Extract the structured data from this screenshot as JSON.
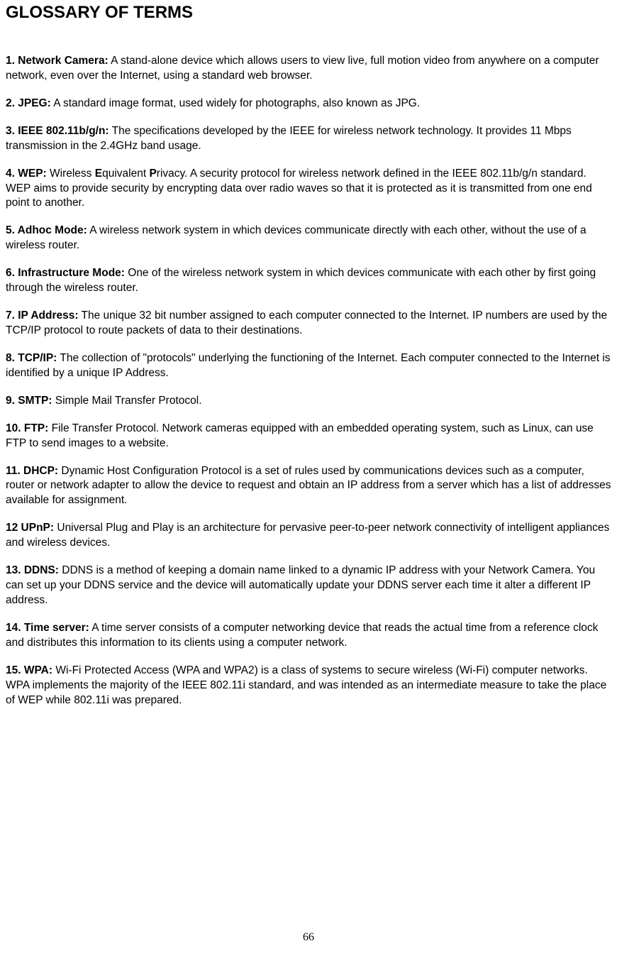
{
  "title": "GLOSSARY OF TERMS",
  "page_number": "66",
  "colors": {
    "text": "#000000",
    "background": "#ffffff"
  },
  "typography": {
    "heading_fontsize_pt": 18,
    "body_fontsize_pt": 11.5,
    "font_family": "Arial"
  },
  "entries": [
    {
      "term": "1. Network Camera:",
      "definition_parts": [
        {
          "text": " A stand-alone device which allows users to view live, full motion video from anywhere on a computer network, even over the Internet, using a standard web browser.",
          "bold": false
        }
      ]
    },
    {
      "term": "2. JPEG:",
      "definition_parts": [
        {
          "text": " A standard image format, used widely for photographs, also known as JPG.",
          "bold": false
        }
      ]
    },
    {
      "term": "3. IEEE 802.11b/g/n:",
      "definition_parts": [
        {
          "text": " The specifications developed by the IEEE for wireless network technology. It provides 11 Mbps transmission in the 2.4GHz band usage.",
          "bold": false
        }
      ]
    },
    {
      "term": "4. WEP:",
      "definition_parts": [
        {
          "text": " Wireless ",
          "bold": false
        },
        {
          "text": "E",
          "bold": true
        },
        {
          "text": "quivalent ",
          "bold": false
        },
        {
          "text": "P",
          "bold": true
        },
        {
          "text": "rivacy. A security protocol for wireless network defined in the IEEE 802.11b/g/n standard. WEP aims to provide security by encrypting data over radio waves so that it is protected as it is transmitted from one end point to another.",
          "bold": false
        }
      ]
    },
    {
      "term": "5. Adhoc Mode:",
      "definition_parts": [
        {
          "text": " A wireless network system in which devices communicate directly with each other, without the use of a wireless router.",
          "bold": false
        }
      ]
    },
    {
      "term": "6. Infrastructure Mode:",
      "definition_parts": [
        {
          "text": " One of the wireless network system in which devices communicate with each other by first going through the wireless router.",
          "bold": false
        }
      ]
    },
    {
      "term": "7. IP Address:",
      "definition_parts": [
        {
          "text": " The unique 32 bit number assigned to each computer connected to the Internet. IP numbers are used by the TCP/IP protocol to route packets of data to their destinations.",
          "bold": false
        }
      ]
    },
    {
      "term": "8. TCP/IP:",
      "definition_parts": [
        {
          "text": " The collection of \"protocols\" underlying the functioning of the Internet. Each computer connected to the Internet is identified by a unique IP Address.",
          "bold": false
        }
      ]
    },
    {
      "term": "9. SMTP:",
      "definition_parts": [
        {
          "text": " Simple Mail Transfer Protocol.",
          "bold": false
        }
      ]
    },
    {
      "term": "10. FTP:",
      "definition_parts": [
        {
          "text": " File Transfer Protocol. Network cameras equipped with an embedded operating system, such as Linux, can use FTP to send images to a website.",
          "bold": false
        }
      ]
    },
    {
      "term": "11. DHCP:",
      "definition_parts": [
        {
          "text": " Dynamic Host Configuration Protocol is a set of rules used by communications devices such as a computer, router or network adapter to allow the device to request and obtain an IP address from a server which has a list of addresses available for assignment.",
          "bold": false
        }
      ]
    },
    {
      "term": "12 UPnP:",
      "definition_parts": [
        {
          "text": " Universal Plug and Play is an architecture for pervasive peer-to-peer network connectivity of intelligent appliances and wireless devices.",
          "bold": false
        }
      ]
    },
    {
      "term": "13. DDNS:",
      "definition_parts": [
        {
          "text": " DDNS is a method of keeping a domain name linked to a dynamic IP address with your Network Camera. You can set up your DDNS service and the device will automatically update your DDNS server each time it alter a different IP address.",
          "bold": false
        }
      ]
    },
    {
      "term": "14. Time server:",
      "definition_parts": [
        {
          "text": " A time server consists of a computer networking device that reads the actual time from a reference clock and distributes this information to its clients using a computer network.",
          "bold": false
        }
      ]
    },
    {
      "term": "15. WPA:",
      "definition_parts": [
        {
          "text": " Wi-Fi Protected Access (WPA and WPA2) is a class of systems to secure wireless (Wi-Fi) computer networks. WPA implements the majority of the IEEE 802.11i standard, and was intended as an intermediate measure to take the place of WEP while 802.11i was prepared.",
          "bold": false
        }
      ]
    }
  ]
}
